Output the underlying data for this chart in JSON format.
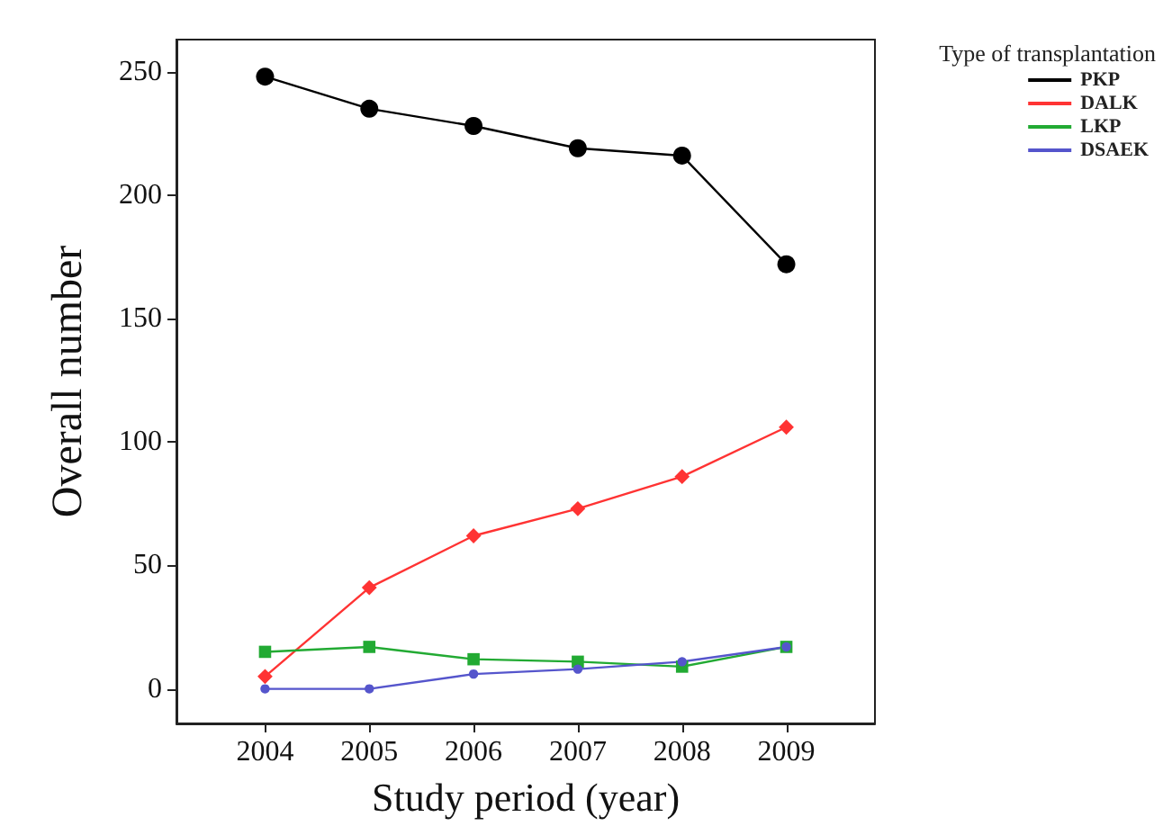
{
  "chart_data": {
    "type": "line",
    "xlabel": "Study period (year)",
    "ylabel": "Overall number",
    "legend_title": "Type of transplantation",
    "x": [
      2004,
      2005,
      2006,
      2007,
      2008,
      2009
    ],
    "xlim": [
      2003.15,
      2009.85
    ],
    "xticks": [
      2004,
      2005,
      2006,
      2007,
      2008,
      2009
    ],
    "ylim": [
      -14,
      263
    ],
    "yticks": [
      0,
      50,
      100,
      150,
      200,
      250
    ],
    "grid": false,
    "legend": "top right",
    "series": [
      {
        "name": "PKP",
        "color": "#000000",
        "marker": "circle",
        "values": [
          248,
          235,
          228,
          219,
          216,
          172
        ]
      },
      {
        "name": "DALK",
        "color": "#ff3333",
        "marker": "diamond",
        "values": [
          5,
          41,
          62,
          73,
          86,
          106
        ]
      },
      {
        "name": "LKP",
        "color": "#22aa33",
        "marker": "square",
        "values": [
          15,
          17,
          12,
          11,
          9,
          17
        ]
      },
      {
        "name": "DSAEK",
        "color": "#5555cc",
        "marker": "circle",
        "values": [
          0,
          0,
          6,
          8,
          11,
          17
        ]
      }
    ]
  }
}
